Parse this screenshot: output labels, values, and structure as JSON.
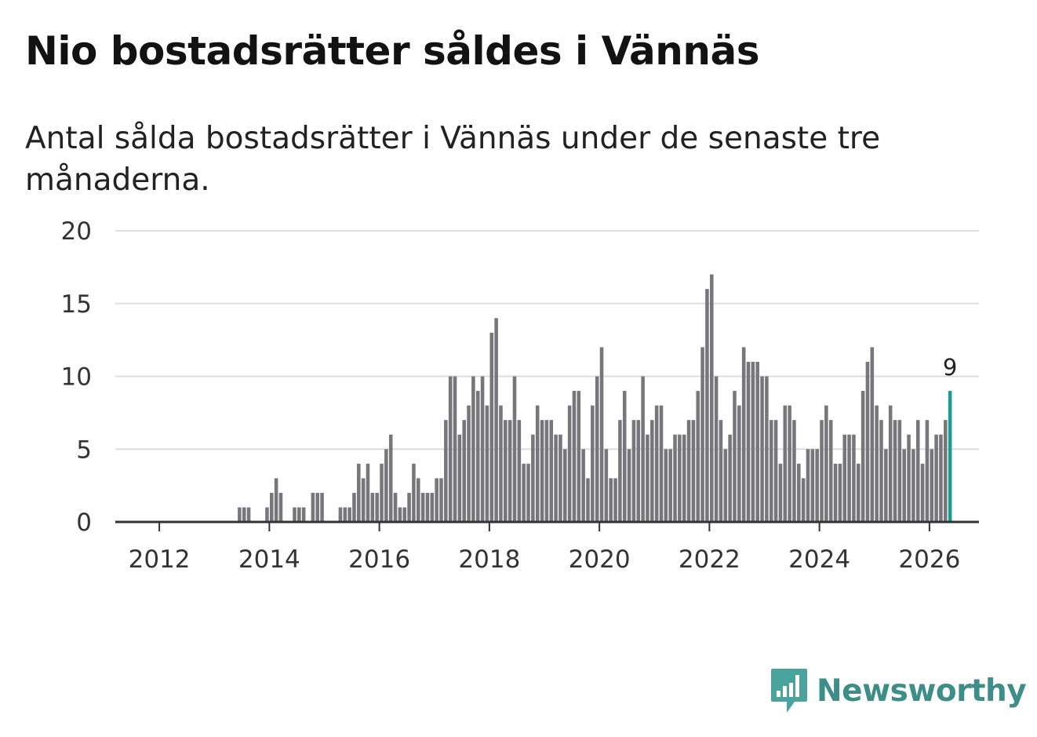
{
  "title": "Nio bostadsrätter såldes i Vännäs",
  "subtitle": "Antal sålda bostadsrätter i Vännäs under de senaste tre månaderna.",
  "brand": {
    "name": "Newsworthy",
    "color": "#3d9e98",
    "icon": "chart-bubble-icon"
  },
  "colors": {
    "bar": "#77767b",
    "highlight": "#1a9c94",
    "grid": "#dddddd",
    "axis": "#333333"
  },
  "chart_data": {
    "type": "bar",
    "title": "Nio bostadsrätter såldes i Vännäs",
    "xlabel": "",
    "ylabel": "",
    "ylim": [
      0,
      20
    ],
    "xlim": [
      2011.2,
      2026.9
    ],
    "yticks": [
      0,
      5,
      10,
      15,
      20
    ],
    "xticks": [
      2012,
      2014,
      2016,
      2018,
      2020,
      2022,
      2024,
      2026
    ],
    "x_start": 2011.0,
    "x_step": 0.08333,
    "grid": true,
    "values": [
      0,
      0,
      0,
      0,
      0,
      0,
      0,
      0,
      0,
      0,
      0,
      0,
      0,
      0,
      0,
      0,
      0,
      0,
      0,
      0,
      0,
      0,
      0,
      0,
      0,
      0,
      0,
      0,
      0,
      1,
      1,
      1,
      0,
      0,
      0,
      1,
      2,
      3,
      2,
      0,
      0,
      1,
      1,
      1,
      0,
      2,
      2,
      2,
      0,
      0,
      0,
      1,
      1,
      1,
      2,
      4,
      3,
      4,
      2,
      2,
      4,
      5,
      6,
      2,
      1,
      1,
      2,
      4,
      3,
      2,
      2,
      2,
      3,
      3,
      7,
      10,
      10,
      6,
      7,
      8,
      10,
      9,
      10,
      8,
      13,
      14,
      8,
      7,
      7,
      10,
      7,
      4,
      4,
      6,
      8,
      7,
      7,
      7,
      6,
      6,
      5,
      8,
      9,
      9,
      5,
      3,
      8,
      10,
      12,
      5,
      3,
      3,
      7,
      9,
      5,
      7,
      7,
      10,
      6,
      7,
      8,
      8,
      5,
      5,
      6,
      6,
      6,
      7,
      7,
      9,
      12,
      16,
      17,
      10,
      7,
      5,
      6,
      9,
      8,
      12,
      11,
      11,
      11,
      10,
      10,
      7,
      7,
      4,
      8,
      8,
      7,
      4,
      3,
      5,
      5,
      5,
      7,
      8,
      7,
      4,
      4,
      6,
      6,
      6,
      4,
      9,
      11,
      12,
      8,
      7,
      5,
      8,
      7,
      7,
      5,
      6,
      5,
      7,
      4,
      7,
      5,
      6,
      6,
      7,
      9
    ],
    "highlight": {
      "index": 184,
      "value": 9,
      "label": "9"
    }
  }
}
